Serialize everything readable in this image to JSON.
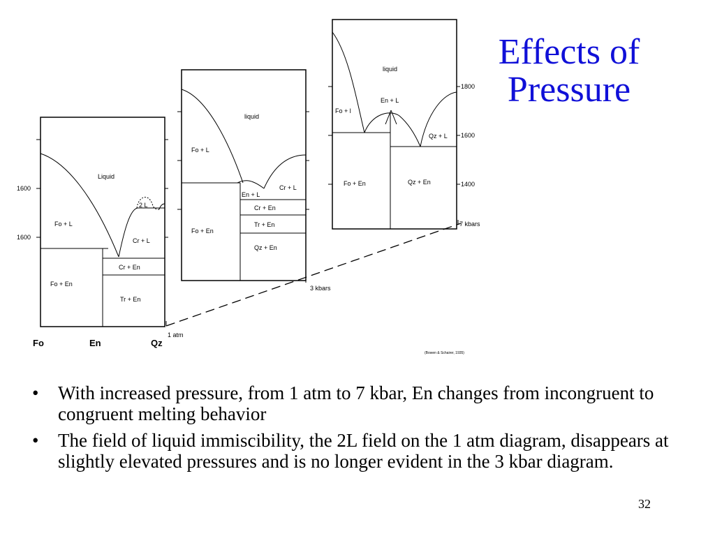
{
  "title": {
    "line1": "Effects of",
    "line2": "Pressure"
  },
  "diagram": {
    "components": {
      "fo": "Fo",
      "en": "En",
      "qz": "Qz"
    },
    "pressure_labels": {
      "p1": "1 atm",
      "p3": "3 kbars",
      "p7": "7 kbars"
    },
    "diagram_1atm": {
      "fields": {
        "liquid": "Liquid",
        "fo_l": "Fo + L",
        "two_l": "2 L",
        "cr_l": "Cr + L",
        "cr_en": "Cr + En",
        "fo_en": "Fo + En",
        "tr_en": "Tr + En"
      },
      "temps": {
        "t_high": "1600",
        "t_low": "1600"
      }
    },
    "diagram_3kbar": {
      "fields": {
        "liquid": "liquid",
        "fo_l": "Fo + L",
        "en_l": "En + L",
        "cr_l": "Cr + L",
        "cr_en": "Cr + En",
        "tr_en": "Tr + En",
        "fo_en": "Fo + En",
        "qz_en": "Qz + En"
      }
    },
    "diagram_7kbar": {
      "fields": {
        "liquid": "liquid",
        "fo_l": "Fo + l",
        "en_l": "En + L",
        "qz_l": "Qz + L",
        "fo_en": "Fo + En",
        "qz_en": "Qz + En"
      },
      "temps": {
        "t1800": "1800",
        "t1600": "1600",
        "t1400": "1400"
      }
    },
    "credit": "(Bowen & Schairer, 1935)"
  },
  "bullets": [
    "With increased pressure, from 1 atm to 7 kbar, En changes from incongruent to congruent melting behavior",
    "The field of liquid immiscibility, the 2L field on the 1 atm diagram, disappears at slightly elevated pressures and is no longer evident in the 3 kbar diagram."
  ],
  "page_number": "32"
}
